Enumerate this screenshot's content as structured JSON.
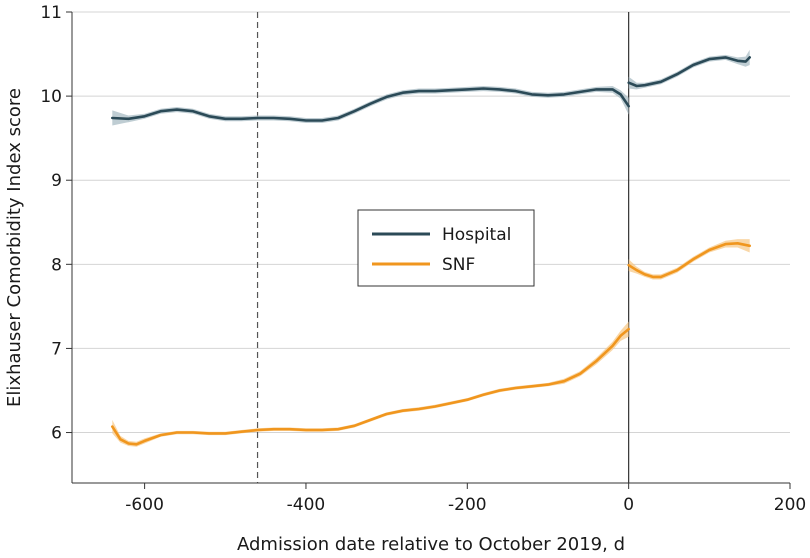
{
  "chart_data": {
    "type": "line",
    "title": "",
    "xlabel": "Admission date relative to October 2019, d",
    "ylabel": "Elixhauser Comorbidity Index score",
    "xlim": [
      -690,
      200
    ],
    "ylim": [
      5.4,
      11
    ],
    "xticks": [
      -600,
      -400,
      -200,
      0,
      200
    ],
    "xtick_labels": [
      "-600",
      "-400",
      "-200",
      "0",
      "200"
    ],
    "yticks": [
      6,
      7,
      8,
      9,
      10,
      11
    ],
    "ytick_labels": [
      "6",
      "7",
      "8",
      "9",
      "10",
      "11"
    ],
    "grid": "horizontal",
    "reference_lines": [
      {
        "x": -460,
        "style": "dashed"
      },
      {
        "x": 0,
        "style": "solid"
      }
    ],
    "legend": {
      "position": "center",
      "entries": [
        "Hospital",
        "SNF"
      ]
    },
    "series": [
      {
        "name": "Hospital",
        "color": "#2b4a57",
        "band_color": "#a9bcc4",
        "segments": [
          {
            "x": [
              -640,
              -620,
              -600,
              -580,
              -560,
              -540,
              -520,
              -500,
              -480,
              -460,
              -440,
              -420,
              -400,
              -380,
              -360,
              -340,
              -320,
              -300,
              -280,
              -260,
              -240,
              -220,
              -200,
              -180,
              -160,
              -140,
              -120,
              -100,
              -80,
              -60,
              -40,
              -20,
              -10,
              0
            ],
            "y": [
              9.74,
              9.73,
              9.76,
              9.82,
              9.84,
              9.82,
              9.76,
              9.73,
              9.73,
              9.74,
              9.74,
              9.73,
              9.71,
              9.71,
              9.74,
              9.82,
              9.91,
              9.99,
              10.04,
              10.06,
              10.06,
              10.07,
              10.08,
              10.09,
              10.08,
              10.06,
              10.02,
              10.01,
              10.02,
              10.05,
              10.08,
              10.08,
              10.02,
              9.88
            ],
            "band": [
              0.09,
              0.04,
              0.03,
              0.03,
              0.03,
              0.03,
              0.03,
              0.03,
              0.03,
              0.03,
              0.03,
              0.03,
              0.03,
              0.03,
              0.03,
              0.03,
              0.03,
              0.03,
              0.03,
              0.03,
              0.03,
              0.03,
              0.03,
              0.03,
              0.03,
              0.03,
              0.03,
              0.03,
              0.03,
              0.03,
              0.03,
              0.04,
              0.05,
              0.1
            ]
          },
          {
            "x": [
              0,
              10,
              20,
              40,
              60,
              80,
              100,
              120,
              135,
              145,
              150
            ],
            "y": [
              10.16,
              10.12,
              10.13,
              10.17,
              10.26,
              10.37,
              10.44,
              10.46,
              10.42,
              10.41,
              10.46
            ],
            "band": [
              0.07,
              0.04,
              0.03,
              0.03,
              0.03,
              0.03,
              0.03,
              0.03,
              0.04,
              0.06,
              0.09
            ]
          }
        ]
      },
      {
        "name": "SNF",
        "color": "#f0961e",
        "band_color": "#f7c98a",
        "segments": [
          {
            "x": [
              -640,
              -630,
              -620,
              -610,
              -600,
              -580,
              -560,
              -540,
              -520,
              -500,
              -480,
              -460,
              -440,
              -420,
              -400,
              -380,
              -360,
              -340,
              -320,
              -300,
              -280,
              -260,
              -240,
              -220,
              -200,
              -180,
              -160,
              -140,
              -120,
              -100,
              -80,
              -60,
              -40,
              -20,
              -10,
              0
            ],
            "y": [
              6.07,
              5.92,
              5.87,
              5.86,
              5.9,
              5.97,
              6.0,
              6.0,
              5.99,
              5.99,
              6.01,
              6.03,
              6.04,
              6.04,
              6.03,
              6.03,
              6.04,
              6.08,
              6.15,
              6.22,
              6.26,
              6.28,
              6.31,
              6.35,
              6.39,
              6.45,
              6.5,
              6.53,
              6.55,
              6.57,
              6.61,
              6.7,
              6.85,
              7.03,
              7.15,
              7.23
            ],
            "band": [
              0.08,
              0.04,
              0.03,
              0.03,
              0.03,
              0.02,
              0.02,
              0.02,
              0.02,
              0.02,
              0.02,
              0.02,
              0.02,
              0.02,
              0.02,
              0.02,
              0.02,
              0.02,
              0.02,
              0.02,
              0.02,
              0.02,
              0.02,
              0.02,
              0.02,
              0.02,
              0.02,
              0.02,
              0.02,
              0.02,
              0.03,
              0.03,
              0.04,
              0.05,
              0.06,
              0.09
            ]
          },
          {
            "x": [
              0,
              10,
              20,
              30,
              40,
              60,
              80,
              100,
              120,
              135,
              150
            ],
            "y": [
              7.99,
              7.93,
              7.88,
              7.85,
              7.85,
              7.93,
              8.06,
              8.17,
              8.24,
              8.25,
              8.22
            ],
            "band": [
              0.07,
              0.04,
              0.03,
              0.03,
              0.03,
              0.03,
              0.03,
              0.03,
              0.04,
              0.05,
              0.08
            ]
          }
        ]
      }
    ]
  }
}
